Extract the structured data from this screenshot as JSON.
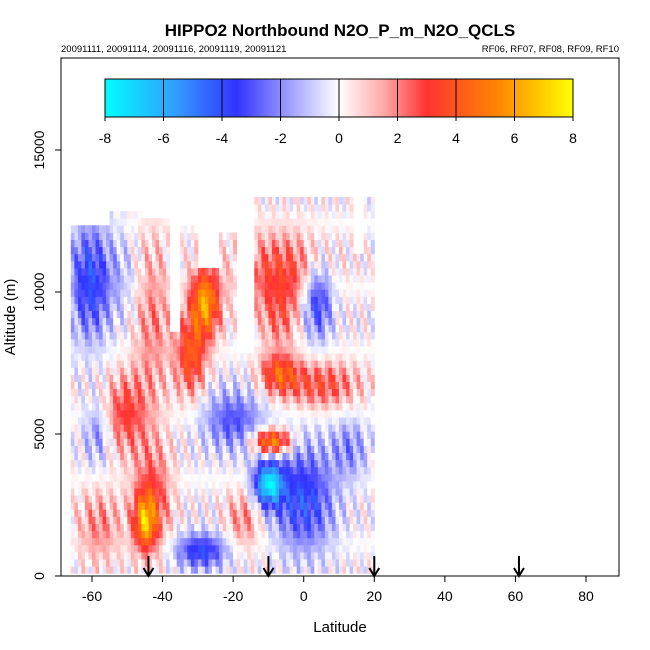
{
  "chart_data": {
    "type": "heatmap",
    "title": "HIPPO2 Northbound N2O_P_m_N2O_QCLS",
    "subtitle_left": "20091111, 20091114, 20091116, 20091119, 20091121",
    "subtitle_right": "RF06, RF07, RF08, RF09, RF10",
    "xlabel": "Latitude",
    "ylabel": "Altitude (m)",
    "xlim": [
      -70,
      90
    ],
    "ylim": [
      0,
      18000
    ],
    "x_ticks": [
      -60,
      -40,
      -20,
      0,
      20,
      40,
      60,
      80
    ],
    "y_ticks": [
      0,
      5000,
      10000,
      15000
    ],
    "colorbar": {
      "min": -8,
      "max": 8,
      "ticks": [
        -8,
        -6,
        -4,
        -2,
        0,
        2,
        4,
        6,
        8
      ],
      "colors": [
        "#00ffff",
        "#3399ff",
        "#3333ff",
        "#ffffff",
        "#ff3333",
        "#ff8800",
        "#ffff00"
      ]
    },
    "markers_latitude": [
      -44,
      -10,
      20,
      61
    ],
    "data_extent": {
      "lat_range": [
        -66,
        20
      ],
      "alt_range": [
        0,
        13300
      ]
    },
    "regions": [
      {
        "lat": [
          -66,
          -55
        ],
        "alt": [
          8500,
          12300
        ],
        "value": -4
      },
      {
        "lat": [
          -56,
          -46
        ],
        "alt": [
          9000,
          12000
        ],
        "value": -1
      },
      {
        "lat": [
          -48,
          -38
        ],
        "alt": [
          6000,
          12000
        ],
        "value": 2
      },
      {
        "lat": [
          -36,
          -28
        ],
        "alt": [
          6500,
          9000
        ],
        "value": 4
      },
      {
        "lat": [
          -32,
          -24
        ],
        "alt": [
          8500,
          10800
        ],
        "value": 6
      },
      {
        "lat": [
          -18,
          5
        ],
        "alt": [
          9500,
          12000
        ],
        "value": 3
      },
      {
        "lat": [
          -12,
          -2
        ],
        "alt": [
          8000,
          10200
        ],
        "value": 2
      },
      {
        "lat": [
          -12,
          -2
        ],
        "alt": [
          6500,
          7800
        ],
        "value": 4
      },
      {
        "lat": [
          0,
          8
        ],
        "alt": [
          8500,
          11000
        ],
        "value": -4
      },
      {
        "lat": [
          -5,
          15
        ],
        "alt": [
          6000,
          7500
        ],
        "value": 3
      },
      {
        "lat": [
          -28,
          -12
        ],
        "alt": [
          4500,
          6500
        ],
        "value": -3
      },
      {
        "lat": [
          -62,
          -55
        ],
        "alt": [
          4000,
          6000
        ],
        "value": -2
      },
      {
        "lat": [
          -56,
          -45
        ],
        "alt": [
          4500,
          7000
        ],
        "value": 3
      },
      {
        "lat": [
          -48,
          -38
        ],
        "alt": [
          1000,
          4500
        ],
        "value": 3
      },
      {
        "lat": [
          -48,
          -42
        ],
        "alt": [
          1000,
          2800
        ],
        "value": 5
      },
      {
        "lat": [
          -14,
          -4
        ],
        "alt": [
          4500,
          5000
        ],
        "value": 6
      },
      {
        "lat": [
          -14,
          -6
        ],
        "alt": [
          2500,
          4000
        ],
        "value": -7
      },
      {
        "lat": [
          -8,
          8
        ],
        "alt": [
          1000,
          4500
        ],
        "value": -4
      },
      {
        "lat": [
          8,
          18
        ],
        "alt": [
          3500,
          5500
        ],
        "value": -2
      },
      {
        "lat": [
          -36,
          -22
        ],
        "alt": [
          300,
          1500
        ],
        "value": -4
      },
      {
        "lat": [
          -64,
          -52
        ],
        "alt": [
          500,
          3000
        ],
        "value": 2
      },
      {
        "lat": [
          -22,
          -12
        ],
        "alt": [
          1000,
          3000
        ],
        "value": 2
      }
    ]
  }
}
